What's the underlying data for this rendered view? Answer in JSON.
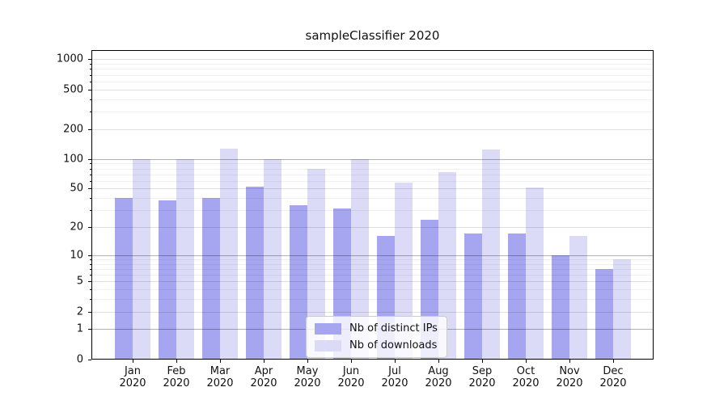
{
  "title": "sampleClassifier 2020",
  "colors": {
    "series_ips": "#a5a5f0",
    "series_downloads": "#dbdbf8",
    "grid_decade": "rgba(0,0,0,0.30)",
    "grid_labeled": "rgba(0,0,0,0.12)",
    "grid_minor": "rgba(0,0,0,0.06)",
    "frame": "#000000",
    "text": "#111111",
    "legend_bg": "rgba(255,255,255,0.8)",
    "legend_border": "#cccccc"
  },
  "chart_data": {
    "type": "bar",
    "title": "sampleClassifier 2020",
    "categories": [
      "Jan 2020",
      "Feb 2020",
      "Mar 2020",
      "Apr 2020",
      "May 2020",
      "Jun 2020",
      "Jul 2020",
      "Aug 2020",
      "Sep 2020",
      "Oct 2020",
      "Nov 2020",
      "Dec 2020"
    ],
    "x_tick_months": [
      "Jan",
      "Feb",
      "Mar",
      "Apr",
      "May",
      "Jun",
      "Jul",
      "Aug",
      "Sep",
      "Oct",
      "Nov",
      "Dec"
    ],
    "x_tick_year": "2020",
    "series": [
      {
        "name": "Nb of distinct IPs",
        "color": "#a5a5f0",
        "values": [
          40,
          38,
          40,
          52,
          34,
          31,
          16,
          24,
          17,
          17,
          10,
          7
        ]
      },
      {
        "name": "Nb of downloads",
        "color": "#dbdbf8",
        "values": [
          100,
          100,
          128,
          100,
          80,
          100,
          57,
          74,
          124,
          51,
          16,
          9
        ]
      }
    ],
    "xlabel": "",
    "ylabel": "",
    "yscale": "log1p",
    "ylim": [
      0,
      1250
    ],
    "yticks": [
      0,
      1,
      2,
      5,
      10,
      20,
      50,
      100,
      200,
      500,
      1000
    ],
    "yticks_emphasized": [
      1,
      10,
      100
    ],
    "yticks_minor": [
      3,
      4,
      6,
      7,
      8,
      9,
      30,
      40,
      60,
      70,
      80,
      90,
      300,
      400,
      600,
      700,
      800,
      900
    ],
    "grid": true,
    "legend_position": "lower center"
  }
}
